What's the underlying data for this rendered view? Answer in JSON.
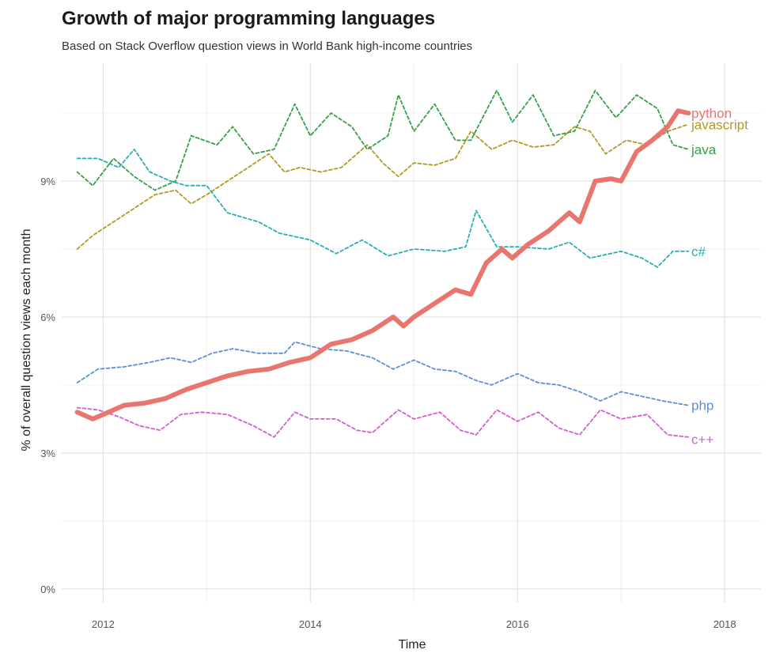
{
  "chart_data": {
    "type": "line",
    "title": "Growth of major programming languages",
    "subtitle": "Based on Stack Overflow question views in World Bank high-income countries",
    "xlabel": "Time",
    "ylabel": "% of overall question views each month",
    "xlim": [
      2011.6,
      2018.35
    ],
    "ylim": [
      -0.3,
      11.6
    ],
    "x_ticks": [
      {
        "value": 2012,
        "label": "2012"
      },
      {
        "value": 2014,
        "label": "2014"
      },
      {
        "value": 2016,
        "label": "2016"
      },
      {
        "value": 2018,
        "label": "2018"
      }
    ],
    "y_ticks": [
      {
        "value": 0,
        "label": "0%"
      },
      {
        "value": 3,
        "label": "3%"
      },
      {
        "value": 6,
        "label": "6%"
      },
      {
        "value": 9,
        "label": "9%"
      }
    ],
    "grid": true,
    "legend": "direct labels at right end of each line",
    "series": [
      {
        "name": "python",
        "color": "#e8766f",
        "style": "solid",
        "points": [
          [
            2011.75,
            3.9
          ],
          [
            2011.9,
            3.75
          ],
          [
            2012.0,
            3.85
          ],
          [
            2012.2,
            4.05
          ],
          [
            2012.4,
            4.1
          ],
          [
            2012.6,
            4.2
          ],
          [
            2012.8,
            4.4
          ],
          [
            2013.0,
            4.55
          ],
          [
            2013.2,
            4.7
          ],
          [
            2013.4,
            4.8
          ],
          [
            2013.6,
            4.85
          ],
          [
            2013.8,
            5.0
          ],
          [
            2014.0,
            5.1
          ],
          [
            2014.2,
            5.4
          ],
          [
            2014.4,
            5.5
          ],
          [
            2014.6,
            5.7
          ],
          [
            2014.8,
            6.0
          ],
          [
            2014.9,
            5.8
          ],
          [
            2015.0,
            6.0
          ],
          [
            2015.2,
            6.3
          ],
          [
            2015.4,
            6.6
          ],
          [
            2015.55,
            6.5
          ],
          [
            2015.7,
            7.2
          ],
          [
            2015.85,
            7.5
          ],
          [
            2015.95,
            7.3
          ],
          [
            2016.1,
            7.6
          ],
          [
            2016.3,
            7.9
          ],
          [
            2016.5,
            8.3
          ],
          [
            2016.6,
            8.1
          ],
          [
            2016.75,
            9.0
          ],
          [
            2016.9,
            9.05
          ],
          [
            2017.0,
            9.0
          ],
          [
            2017.15,
            9.65
          ],
          [
            2017.3,
            9.9
          ],
          [
            2017.45,
            10.2
          ],
          [
            2017.55,
            10.55
          ],
          [
            2017.65,
            10.5
          ]
        ]
      },
      {
        "name": "javascript",
        "color": "#b09a22",
        "style": "dashed",
        "points": [
          [
            2011.75,
            7.5
          ],
          [
            2011.9,
            7.8
          ],
          [
            2012.1,
            8.1
          ],
          [
            2012.3,
            8.4
          ],
          [
            2012.5,
            8.7
          ],
          [
            2012.7,
            8.8
          ],
          [
            2012.85,
            8.5
          ],
          [
            2013.0,
            8.7
          ],
          [
            2013.2,
            9.0
          ],
          [
            2013.4,
            9.3
          ],
          [
            2013.6,
            9.6
          ],
          [
            2013.75,
            9.2
          ],
          [
            2013.9,
            9.3
          ],
          [
            2014.1,
            9.2
          ],
          [
            2014.3,
            9.3
          ],
          [
            2014.55,
            9.8
          ],
          [
            2014.7,
            9.4
          ],
          [
            2014.85,
            9.1
          ],
          [
            2015.0,
            9.4
          ],
          [
            2015.2,
            9.35
          ],
          [
            2015.4,
            9.5
          ],
          [
            2015.55,
            10.1
          ],
          [
            2015.75,
            9.7
          ],
          [
            2015.95,
            9.9
          ],
          [
            2016.15,
            9.75
          ],
          [
            2016.35,
            9.8
          ],
          [
            2016.55,
            10.2
          ],
          [
            2016.7,
            10.1
          ],
          [
            2016.85,
            9.6
          ],
          [
            2017.05,
            9.9
          ],
          [
            2017.25,
            9.8
          ],
          [
            2017.45,
            10.1
          ],
          [
            2017.65,
            10.25
          ]
        ]
      },
      {
        "name": "java",
        "color": "#35a047",
        "style": "dashed",
        "points": [
          [
            2011.75,
            9.2
          ],
          [
            2011.9,
            8.9
          ],
          [
            2012.1,
            9.5
          ],
          [
            2012.3,
            9.1
          ],
          [
            2012.5,
            8.8
          ],
          [
            2012.7,
            9.0
          ],
          [
            2012.85,
            10.0
          ],
          [
            2013.1,
            9.8
          ],
          [
            2013.25,
            10.2
          ],
          [
            2013.45,
            9.6
          ],
          [
            2013.65,
            9.7
          ],
          [
            2013.85,
            10.7
          ],
          [
            2014.0,
            10.0
          ],
          [
            2014.2,
            10.5
          ],
          [
            2014.4,
            10.2
          ],
          [
            2014.55,
            9.7
          ],
          [
            2014.75,
            10.0
          ],
          [
            2014.85,
            10.9
          ],
          [
            2015.0,
            10.1
          ],
          [
            2015.2,
            10.7
          ],
          [
            2015.4,
            9.9
          ],
          [
            2015.55,
            9.9
          ],
          [
            2015.8,
            11.0
          ],
          [
            2015.95,
            10.3
          ],
          [
            2016.15,
            10.9
          ],
          [
            2016.35,
            10.0
          ],
          [
            2016.55,
            10.1
          ],
          [
            2016.75,
            11.0
          ],
          [
            2016.95,
            10.4
          ],
          [
            2017.15,
            10.9
          ],
          [
            2017.35,
            10.6
          ],
          [
            2017.5,
            9.8
          ],
          [
            2017.65,
            9.7
          ]
        ]
      },
      {
        "name": "c#",
        "color": "#28aeb4",
        "style": "dashed",
        "points": [
          [
            2011.75,
            9.5
          ],
          [
            2011.95,
            9.5
          ],
          [
            2012.15,
            9.3
          ],
          [
            2012.3,
            9.7
          ],
          [
            2012.45,
            9.2
          ],
          [
            2012.65,
            9.0
          ],
          [
            2012.8,
            8.9
          ],
          [
            2013.0,
            8.9
          ],
          [
            2013.2,
            8.3
          ],
          [
            2013.5,
            8.1
          ],
          [
            2013.7,
            7.85
          ],
          [
            2014.0,
            7.7
          ],
          [
            2014.25,
            7.4
          ],
          [
            2014.5,
            7.7
          ],
          [
            2014.75,
            7.35
          ],
          [
            2015.0,
            7.5
          ],
          [
            2015.3,
            7.45
          ],
          [
            2015.5,
            7.55
          ],
          [
            2015.6,
            8.35
          ],
          [
            2015.8,
            7.55
          ],
          [
            2016.0,
            7.55
          ],
          [
            2016.3,
            7.5
          ],
          [
            2016.5,
            7.65
          ],
          [
            2016.7,
            7.3
          ],
          [
            2017.0,
            7.45
          ],
          [
            2017.2,
            7.3
          ],
          [
            2017.35,
            7.1
          ],
          [
            2017.5,
            7.45
          ],
          [
            2017.65,
            7.45
          ]
        ]
      },
      {
        "name": "php",
        "color": "#5c8fd6",
        "style": "dashed",
        "points": [
          [
            2011.75,
            4.55
          ],
          [
            2011.95,
            4.85
          ],
          [
            2012.2,
            4.9
          ],
          [
            2012.45,
            5.0
          ],
          [
            2012.65,
            5.1
          ],
          [
            2012.85,
            5.0
          ],
          [
            2013.05,
            5.2
          ],
          [
            2013.25,
            5.3
          ],
          [
            2013.5,
            5.2
          ],
          [
            2013.75,
            5.2
          ],
          [
            2013.85,
            5.45
          ],
          [
            2014.1,
            5.3
          ],
          [
            2014.35,
            5.25
          ],
          [
            2014.6,
            5.1
          ],
          [
            2014.8,
            4.85
          ],
          [
            2015.0,
            5.05
          ],
          [
            2015.2,
            4.85
          ],
          [
            2015.4,
            4.8
          ],
          [
            2015.6,
            4.6
          ],
          [
            2015.75,
            4.5
          ],
          [
            2016.0,
            4.75
          ],
          [
            2016.2,
            4.55
          ],
          [
            2016.4,
            4.5
          ],
          [
            2016.6,
            4.35
          ],
          [
            2016.8,
            4.15
          ],
          [
            2017.0,
            4.35
          ],
          [
            2017.2,
            4.25
          ],
          [
            2017.4,
            4.15
          ],
          [
            2017.65,
            4.05
          ]
        ]
      },
      {
        "name": "c++",
        "color": "#d35fcf",
        "style": "dashed",
        "points": [
          [
            2011.75,
            4.0
          ],
          [
            2011.95,
            3.95
          ],
          [
            2012.15,
            3.8
          ],
          [
            2012.35,
            3.6
          ],
          [
            2012.55,
            3.5
          ],
          [
            2012.75,
            3.85
          ],
          [
            2012.95,
            3.9
          ],
          [
            2013.2,
            3.85
          ],
          [
            2013.45,
            3.6
          ],
          [
            2013.65,
            3.35
          ],
          [
            2013.85,
            3.9
          ],
          [
            2014.0,
            3.75
          ],
          [
            2014.25,
            3.75
          ],
          [
            2014.45,
            3.5
          ],
          [
            2014.6,
            3.45
          ],
          [
            2014.85,
            3.95
          ],
          [
            2015.0,
            3.75
          ],
          [
            2015.25,
            3.9
          ],
          [
            2015.45,
            3.5
          ],
          [
            2015.6,
            3.4
          ],
          [
            2015.8,
            3.95
          ],
          [
            2016.0,
            3.7
          ],
          [
            2016.2,
            3.9
          ],
          [
            2016.4,
            3.55
          ],
          [
            2016.6,
            3.4
          ],
          [
            2016.8,
            3.95
          ],
          [
            2017.0,
            3.75
          ],
          [
            2017.25,
            3.85
          ],
          [
            2017.45,
            3.4
          ],
          [
            2017.65,
            3.35
          ]
        ]
      }
    ],
    "end_labels": [
      {
        "series": "python",
        "text": "python",
        "y": 10.5,
        "color": "#e8766f"
      },
      {
        "series": "javascript",
        "text": "javascript",
        "y": 10.25,
        "color": "#b09a22"
      },
      {
        "series": "java",
        "text": "java",
        "y": 9.7,
        "color": "#35a047"
      },
      {
        "series": "c#",
        "text": "c#",
        "y": 7.45,
        "color": "#28aeb4"
      },
      {
        "series": "php",
        "text": "php",
        "y": 4.05,
        "color": "#5c8fd6"
      },
      {
        "series": "c++",
        "text": "c++",
        "y": 3.3,
        "color": "#d35fcf"
      }
    ]
  }
}
